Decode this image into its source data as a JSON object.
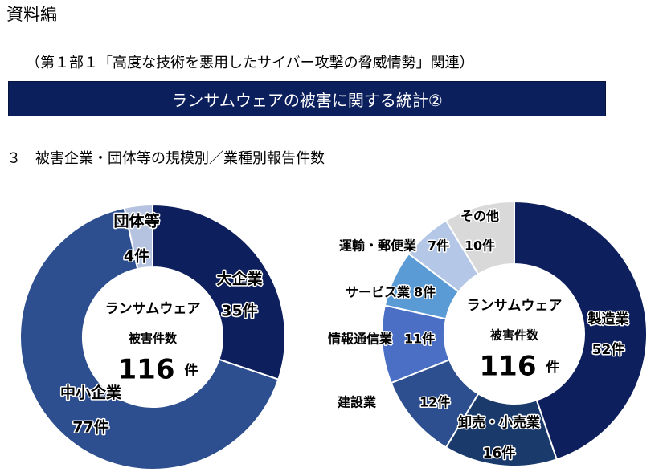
{
  "header": "資料編",
  "subtitle": "（第１部１「高度な技術を悪用したサイバー攻撃の脅威情勢」関連）",
  "banner": "ランサムウェアの被害に関する統計②",
  "section_title": "３　被害企業・団体等の規模別／業種別報告件数",
  "colors": {
    "banner": "#0b1f5c",
    "navy": "#0d1f5c",
    "blue": "#2e4f8f"
  },
  "chart_data": [
    {
      "type": "pie",
      "variant": "donut",
      "center": {
        "line1": "ランサムウェア",
        "line2": "被害件数",
        "total": "116",
        "unit": "件"
      },
      "categories": [
        "大企業",
        "中小企業",
        "団体等"
      ],
      "values": [
        35,
        77,
        4
      ],
      "value_labels": [
        "35件",
        "77件",
        "4件"
      ],
      "colors": [
        "#0d1f5c",
        "#2e4f8f",
        "#b5c3e0"
      ]
    },
    {
      "type": "pie",
      "variant": "donut",
      "center": {
        "line1": "ランサムウェア",
        "line2": "被害件数",
        "total": "116",
        "unit": "件"
      },
      "categories": [
        "製造業",
        "卸売・小売業",
        "建設業",
        "情報通信業",
        "サービス業",
        "運輸・郵便業",
        "その他"
      ],
      "values": [
        52,
        16,
        12,
        11,
        8,
        7,
        10
      ],
      "value_labels": [
        "52件",
        "16件",
        "12件",
        "11件",
        "8件",
        "7件",
        "10件"
      ],
      "colors": [
        "#0d1f5c",
        "#1a3a6b",
        "#2e4f8f",
        "#4a6fc4",
        "#5b9bd5",
        "#b4c7e7",
        "#d9d9d9"
      ]
    }
  ]
}
